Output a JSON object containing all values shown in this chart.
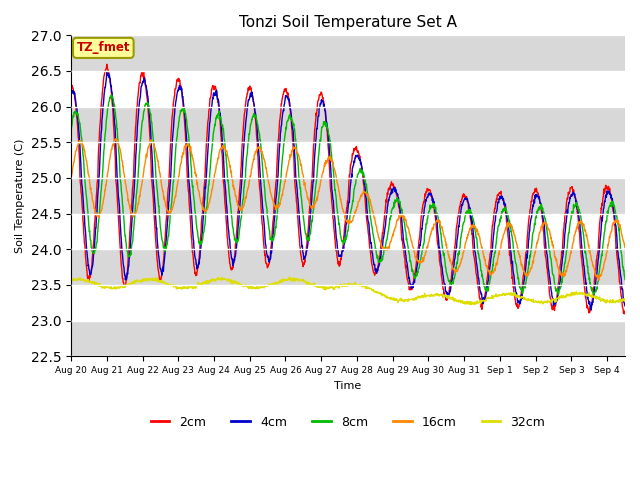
{
  "title": "Tonzi Soil Temperature Set A",
  "ylabel": "Soil Temperature (C)",
  "xlabel": "Time",
  "ylim": [
    22.5,
    27.0
  ],
  "yticks": [
    22.5,
    23.0,
    23.5,
    24.0,
    24.5,
    25.0,
    25.5,
    26.0,
    26.5,
    27.0
  ],
  "colors": {
    "2cm": "#ff0000",
    "4cm": "#0000cc",
    "8cm": "#00bb00",
    "16cm": "#ff8800",
    "32cm": "#dddd00"
  },
  "legend_labels": [
    "2cm",
    "4cm",
    "8cm",
    "16cm",
    "32cm"
  ],
  "annotation_text": "TZ_fmet",
  "annotation_color": "#cc0000",
  "annotation_bg": "#ffff99",
  "n_days": 15.5,
  "points_per_day": 96
}
